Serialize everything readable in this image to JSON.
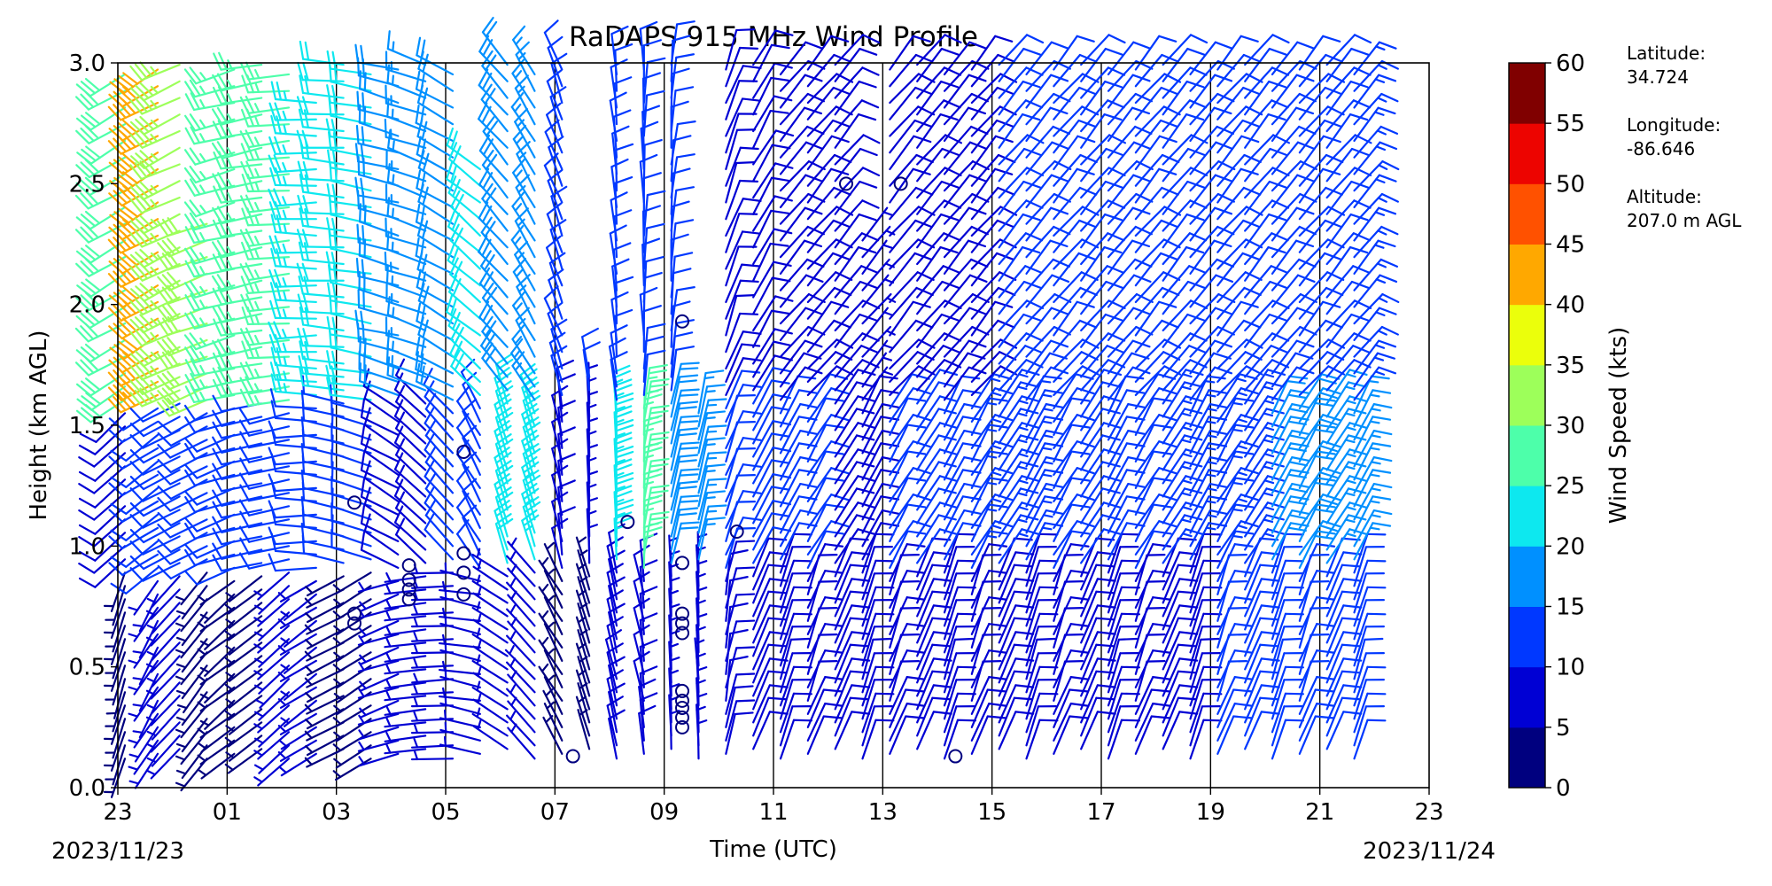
{
  "chart_data": {
    "type": "wind-barb profile",
    "title": "RaDAPS 915 MHz Wind Profile",
    "xlabel": "Time (UTC)",
    "ylabel": "Height (km AGL)",
    "x_ticks": [
      "23",
      "01",
      "03",
      "05",
      "07",
      "09",
      "11",
      "13",
      "15",
      "17",
      "19",
      "21",
      "23"
    ],
    "x_range_hours": [
      0,
      24
    ],
    "y_ticks": [
      "0.0",
      "0.5",
      "1.0",
      "1.5",
      "2.0",
      "2.5",
      "3.0"
    ],
    "ylim": [
      0,
      3
    ],
    "date_start": "2023/11/23",
    "date_end": "2023/11/24",
    "colorbar": {
      "label": "Wind Speed (kts)",
      "ticks": [
        "0",
        "5",
        "10",
        "15",
        "20",
        "25",
        "30",
        "35",
        "40",
        "45",
        "50",
        "55",
        "60"
      ],
      "colors": [
        "#00007f",
        "#0000d4",
        "#0038ff",
        "#0090ff",
        "#0de8ef",
        "#4dffaa",
        "#9dff5a",
        "#ebff0b",
        "#ffa800",
        "#ff5100",
        "#ed0400",
        "#800000"
      ]
    },
    "station": {
      "latitude_label": "Latitude:",
      "latitude": "34.724",
      "longitude_label": "Longitude:",
      "longitude": "-86.646",
      "altitude_label": "Altitude:",
      "altitude": "207.0 m AGL"
    },
    "profile_columns_hour": [
      0,
      0.6,
      1,
      1.5,
      2,
      2.5,
      3,
      3.5,
      4,
      4.5,
      5,
      5.5,
      6,
      6.5,
      7,
      7.5,
      8,
      8.5,
      9,
      9.5,
      10,
      10.5,
      11,
      11.5,
      12,
      12.5,
      13,
      13.5,
      14,
      14.5,
      15,
      15.5,
      16,
      16.5,
      17,
      17.5,
      18,
      18.5,
      19,
      19.5,
      20,
      20.5,
      21,
      21.5,
      22,
      22.5
    ],
    "profile_top_km": [
      3.0,
      3.0,
      3.0,
      2.4,
      3.0,
      3.0,
      3.0,
      2.9,
      3.0,
      3.0,
      3.0,
      3.0,
      3.0,
      2.6,
      3.0,
      3.0,
      3.0,
      1.7,
      3.0,
      3.0,
      3.0,
      1.6,
      3.0,
      3.0,
      3.0,
      3.0,
      3.0,
      2.3,
      3.0,
      3.0,
      3.0,
      3.0,
      3.0,
      3.0,
      3.0,
      3.0,
      3.0,
      3.0,
      3.0,
      3.0,
      3.0,
      3.0,
      3.0,
      3.0,
      3.0,
      3.0
    ],
    "layers": [
      {
        "name": "low",
        "top_km": 0.9,
        "speed_kts": [
          3,
          5,
          5,
          4,
          4,
          4,
          6,
          6,
          4,
          4,
          5,
          5,
          6,
          5,
          5,
          6,
          4,
          4,
          8,
          8,
          5,
          5,
          8,
          8,
          9,
          9,
          9,
          8,
          9,
          9,
          9,
          9,
          9,
          9,
          9,
          9,
          9,
          9,
          9,
          9,
          10,
          10,
          11,
          11,
          12,
          12
        ],
        "dir_deg": [
          200,
          210,
          220,
          220,
          230,
          230,
          230,
          235,
          240,
          240,
          250,
          260,
          270,
          280,
          300,
          320,
          330,
          340,
          350,
          350,
          355,
          0,
          10,
          20,
          20,
          20,
          20,
          20,
          20,
          20,
          20,
          20,
          20,
          20,
          20,
          20,
          20,
          20,
          20,
          20,
          20,
          20,
          20,
          20,
          20,
          20
        ]
      },
      {
        "name": "mid",
        "top_km": 1.6,
        "speed_kts": [
          8,
          10,
          11,
          12,
          11,
          11,
          10,
          10,
          10,
          10,
          9,
          9,
          10,
          10,
          20,
          24,
          8,
          7,
          23,
          26,
          19,
          17,
          10,
          10,
          10,
          10,
          9,
          9,
          10,
          10,
          12,
          13,
          14,
          13,
          12,
          12,
          12,
          12,
          13,
          13,
          13,
          14,
          18,
          19,
          17,
          16
        ],
        "dir_deg": [
          230,
          235,
          240,
          245,
          250,
          255,
          260,
          270,
          280,
          290,
          300,
          310,
          320,
          330,
          340,
          345,
          350,
          355,
          0,
          5,
          10,
          15,
          20,
          25,
          30,
          30,
          30,
          30,
          30,
          30,
          30,
          30,
          30,
          30,
          30,
          30,
          30,
          30,
          30,
          30,
          30,
          30,
          30,
          30,
          30,
          30
        ]
      },
      {
        "name": "upper",
        "top_km": 3.0,
        "speed_kts": [
          28,
          40,
          34,
          30,
          27,
          25,
          25,
          23,
          21,
          20,
          18,
          17,
          19,
          20,
          19,
          16,
          12,
          10,
          12,
          12,
          10,
          9,
          8,
          8,
          8,
          8,
          8,
          7,
          8,
          8,
          9,
          9,
          10,
          10,
          10,
          10,
          10,
          10,
          10,
          10,
          10,
          10,
          11,
          11,
          12,
          13
        ],
        "dir_deg": [
          240,
          240,
          245,
          250,
          255,
          260,
          265,
          270,
          275,
          280,
          285,
          290,
          300,
          310,
          320,
          330,
          340,
          350,
          355,
          0,
          5,
          10,
          20,
          30,
          40,
          40,
          40,
          40,
          40,
          40,
          40,
          40,
          40,
          40,
          40,
          40,
          40,
          40,
          40,
          40,
          40,
          40,
          40,
          40,
          40,
          40
        ]
      }
    ],
    "calm_points": [
      {
        "hour": 4.2,
        "km": 1.18
      },
      {
        "hour": 4.2,
        "km": 0.72
      },
      {
        "hour": 4.2,
        "km": 0.68
      },
      {
        "hour": 5.2,
        "km": 0.92
      },
      {
        "hour": 5.2,
        "km": 0.86
      },
      {
        "hour": 5.2,
        "km": 0.82
      },
      {
        "hour": 5.2,
        "km": 0.78
      },
      {
        "hour": 6.2,
        "km": 1.39
      },
      {
        "hour": 6.2,
        "km": 0.97
      },
      {
        "hour": 6.2,
        "km": 0.89
      },
      {
        "hour": 6.2,
        "km": 0.8
      },
      {
        "hour": 8.2,
        "km": 0.13
      },
      {
        "hour": 9.2,
        "km": 1.1
      },
      {
        "hour": 10.2,
        "km": 1.93
      },
      {
        "hour": 10.2,
        "km": 0.93
      },
      {
        "hour": 10.2,
        "km": 0.72
      },
      {
        "hour": 10.2,
        "km": 0.68
      },
      {
        "hour": 10.2,
        "km": 0.64
      },
      {
        "hour": 10.2,
        "km": 0.4
      },
      {
        "hour": 10.2,
        "km": 0.36
      },
      {
        "hour": 10.2,
        "km": 0.33
      },
      {
        "hour": 10.2,
        "km": 0.29
      },
      {
        "hour": 10.2,
        "km": 0.25
      },
      {
        "hour": 11.2,
        "km": 1.06
      },
      {
        "hour": 13.2,
        "km": 2.5
      },
      {
        "hour": 14.2,
        "km": 2.5
      },
      {
        "hour": 15.2,
        "km": 0.13
      }
    ],
    "grid": "vertical lines every 2 hours"
  }
}
